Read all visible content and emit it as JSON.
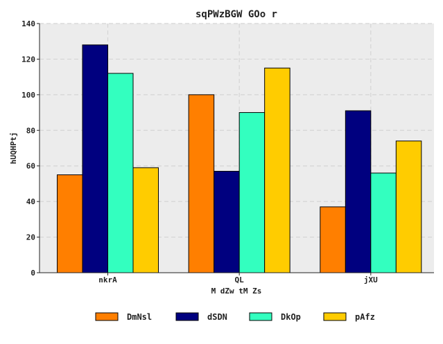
{
  "chart_data": {
    "type": "bar",
    "title": "sqPWzBGW GOo r",
    "xlabel": "M dZw tM Zs",
    "ylabel": "hUQHPtj",
    "categories": [
      "nkrA",
      "QL",
      "jXU"
    ],
    "series": [
      {
        "name": "DmNsl",
        "color": "#ff7f00",
        "values": [
          55,
          100,
          37
        ]
      },
      {
        "name": "dSDN",
        "color": "#00007f",
        "values": [
          128,
          57,
          91
        ]
      },
      {
        "name": "DkOp",
        "color": "#33ffbf",
        "values": [
          112,
          90,
          56
        ]
      },
      {
        "name": "pAfz",
        "color": "#ffcc00",
        "values": [
          59,
          115,
          74
        ]
      }
    ],
    "ylim": [
      0,
      140
    ],
    "yticks": [
      0,
      20,
      40,
      60,
      80,
      100,
      120,
      140
    ],
    "grid": true,
    "legend_position": "bottom",
    "plot_background": "#ececec"
  }
}
